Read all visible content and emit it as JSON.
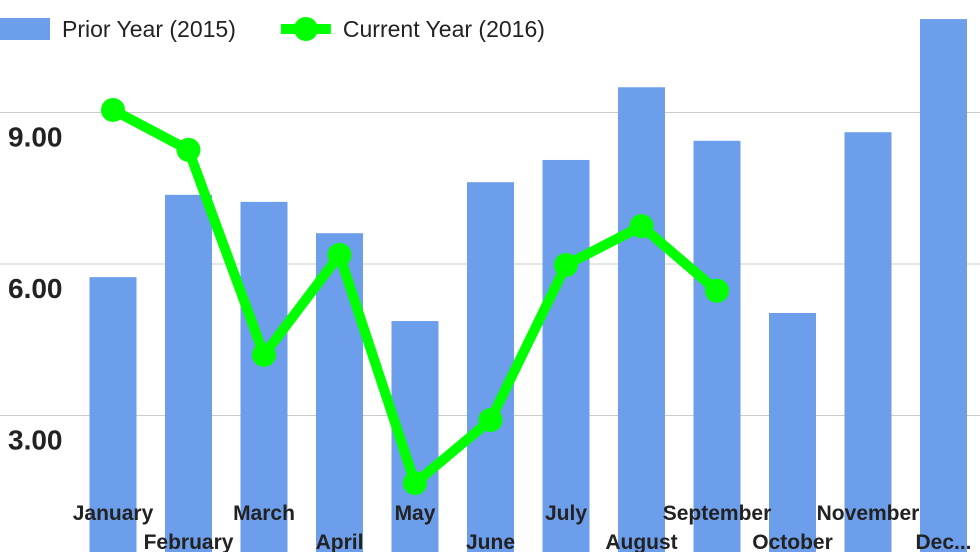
{
  "chart_data": {
    "type": "bar_line",
    "categories": [
      "January",
      "February",
      "March",
      "April",
      "May",
      "June",
      "July",
      "August",
      "September",
      "October",
      "November",
      "Dec..."
    ],
    "series": [
      {
        "name": "Prior Year (2015)",
        "type": "bar",
        "color": "#6d9eeb",
        "values": [
          5.74,
          7.37,
          7.23,
          6.61,
          4.87,
          7.62,
          8.06,
          9.5,
          8.44,
          5.03,
          8.61,
          10.85
        ]
      },
      {
        "name": "Current Year (2016)",
        "type": "line",
        "color": "#00ff00",
        "values": [
          9.05,
          8.26,
          4.2,
          6.18,
          1.66,
          2.91,
          5.98,
          6.75,
          5.47,
          null,
          null,
          null
        ]
      }
    ],
    "ylim": [
      0,
      12
    ],
    "yticks": [
      {
        "value": 3,
        "label": "3.00"
      },
      {
        "value": 6,
        "label": "6.00"
      },
      {
        "value": 9,
        "label": "9.00"
      }
    ],
    "grid": true,
    "legend": "top"
  }
}
